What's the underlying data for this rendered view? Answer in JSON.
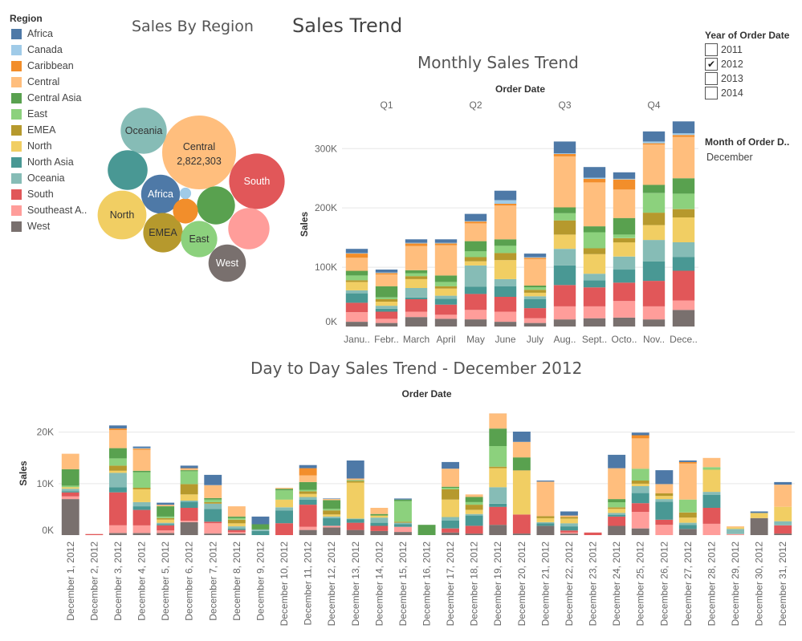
{
  "dashboard_title": "Sales Trend",
  "legend": {
    "title": "Region",
    "items": [
      {
        "name": "Africa",
        "color": "#4e79a7"
      },
      {
        "name": "Canada",
        "color": "#a0cbe8"
      },
      {
        "name": "Caribbean",
        "color": "#f28e2b"
      },
      {
        "name": "Central",
        "color": "#ffbe7d"
      },
      {
        "name": "Central Asia",
        "color": "#59a14f"
      },
      {
        "name": "East",
        "color": "#8cd17d"
      },
      {
        "name": "EMEA",
        "color": "#b6992d"
      },
      {
        "name": "North",
        "color": "#f1ce63"
      },
      {
        "name": "North Asia",
        "color": "#499894"
      },
      {
        "name": "Oceania",
        "color": "#86bcb6"
      },
      {
        "name": "South",
        "color": "#e15759"
      },
      {
        "name": "Southeast A..",
        "color": "#ff9d9a"
      },
      {
        "name": "West",
        "color": "#79706e"
      }
    ]
  },
  "filters": {
    "year": {
      "title": "Year of Order Date",
      "options": [
        {
          "label": "2011",
          "checked": false
        },
        {
          "label": "2012",
          "checked": true
        },
        {
          "label": "2013",
          "checked": false
        },
        {
          "label": "2014",
          "checked": false
        }
      ],
      "check_mark": "✔"
    },
    "month": {
      "title": "Month of Order D..",
      "value": "December"
    }
  },
  "chart_data": [
    {
      "type": "bubble",
      "title": "Sales By Region",
      "labels": [
        {
          "region": "Central",
          "text": "Central",
          "value_text": "2,822,303"
        },
        {
          "region": "Oceania",
          "text": "Oceania"
        },
        {
          "region": "South",
          "text": "South"
        },
        {
          "region": "Africa",
          "text": "Africa"
        },
        {
          "region": "North",
          "text": "North"
        },
        {
          "region": "EMEA",
          "text": "EMEA"
        },
        {
          "region": "East",
          "text": "East"
        },
        {
          "region": "West",
          "text": "West"
        }
      ],
      "values": {
        "Central": 2822303,
        "South": 1600000,
        "Oceania": 1100000,
        "North Asia": 820000,
        "North": 1230000,
        "Africa": 783000,
        "EMEA": 806000,
        "Central Asia": 752000,
        "Southeast A..": 884000,
        "West": 725000,
        "East": 679000,
        "Caribbean": 324000,
        "Canada": 66900
      }
    },
    {
      "type": "bar",
      "stacked": true,
      "title": "Monthly Sales Trend",
      "xlabel": "Order Date",
      "ylabel": "Sales",
      "quarters": [
        "Q1",
        "Q2",
        "Q3",
        "Q4"
      ],
      "categories": [
        "Janu..",
        "Febr..",
        "March",
        "April",
        "May",
        "June",
        "July",
        "Aug..",
        "Sept..",
        "Octo..",
        "Nov..",
        "Dece.."
      ],
      "ylim": [
        0,
        345000
      ],
      "yticks": [
        0,
        100000,
        200000,
        300000
      ],
      "ytick_labels": [
        "0K",
        "100K",
        "200K",
        "300K"
      ],
      "series": [
        {
          "name": "West",
          "values": [
            8000,
            6000,
            16000,
            13000,
            12000,
            8000,
            6000,
            12000,
            14000,
            15000,
            12000,
            28000
          ]
        },
        {
          "name": "Southeast A..",
          "values": [
            16000,
            7000,
            9000,
            7000,
            16000,
            17000,
            8000,
            22000,
            20000,
            28000,
            22000,
            16000
          ]
        },
        {
          "name": "South",
          "values": [
            16000,
            12000,
            21000,
            17000,
            27000,
            25000,
            17000,
            36000,
            32000,
            31000,
            43000,
            50000
          ]
        },
        {
          "name": "North Asia",
          "values": [
            16000,
            5000,
            3000,
            10000,
            12000,
            18000,
            15000,
            33000,
            12000,
            22000,
            33000,
            23000
          ]
        },
        {
          "name": "Oceania",
          "values": [
            5000,
            5000,
            16000,
            5000,
            36000,
            12000,
            5000,
            28000,
            11000,
            22000,
            36000,
            25000
          ]
        },
        {
          "name": "North",
          "values": [
            14000,
            7000,
            15000,
            12000,
            7000,
            32000,
            6000,
            24000,
            33000,
            24000,
            25000,
            42000
          ]
        },
        {
          "name": "EMEA",
          "values": [
            3000,
            4000,
            5000,
            4000,
            7000,
            12000,
            5000,
            24000,
            10000,
            7000,
            21000,
            14000
          ]
        },
        {
          "name": "East",
          "values": [
            8000,
            3000,
            5000,
            7000,
            10000,
            12000,
            4000,
            12000,
            27000,
            6000,
            33000,
            26000
          ]
        },
        {
          "name": "Central Asia",
          "values": [
            8000,
            19000,
            5000,
            11000,
            17000,
            11000,
            3000,
            10000,
            10000,
            28000,
            14000,
            26000
          ]
        },
        {
          "name": "Central",
          "values": [
            22000,
            20000,
            41000,
            51000,
            30000,
            57000,
            45000,
            86000,
            74000,
            48000,
            68000,
            70000
          ]
        },
        {
          "name": "Caribbean",
          "values": [
            7000,
            2000,
            4000,
            3000,
            3000,
            3000,
            2000,
            4000,
            6000,
            17000,
            2000,
            3000
          ]
        },
        {
          "name": "Canada",
          "values": [
            1000,
            1000,
            1000,
            1000,
            1000,
            6000,
            1000,
            1000,
            2000,
            1000,
            3000,
            3000
          ]
        },
        {
          "name": "Africa",
          "values": [
            7000,
            5000,
            6000,
            6000,
            12000,
            16000,
            6000,
            20000,
            18000,
            11000,
            17000,
            20000
          ]
        }
      ]
    },
    {
      "type": "bar",
      "stacked": true,
      "title": "Day to Day Sales Trend - December 2012",
      "xlabel": "Order Date",
      "ylabel": "Sales",
      "categories": [
        "December 1, 2012",
        "December 2, 2012",
        "December 3, 2012",
        "December 4, 2012",
        "December 5, 2012",
        "December 6, 2012",
        "December 7, 2012",
        "December 8, 2012",
        "December 9, 2012",
        "December 10, 2012",
        "December 11, 2012",
        "December 12, 2012",
        "December 13, 2012",
        "December 14, 2012",
        "December 15, 2012",
        "December 16, 2012",
        "December 17, 2012",
        "December 18, 2012",
        "December 19, 2012",
        "December 20, 2012",
        "December 21, 2012",
        "December 22, 2012",
        "December 23, 2012",
        "December 24, 2012",
        "December 25, 2012",
        "December 26, 2012",
        "December 27, 2012",
        "December 28, 2012",
        "December 29, 2012",
        "December 30, 2012",
        "December 31, 2012"
      ],
      "ylim": [
        0,
        24000
      ],
      "yticks": [
        0,
        10000,
        20000
      ],
      "ytick_labels": [
        "0K",
        "10K",
        "20K"
      ],
      "series": [
        {
          "name": "West",
          "values": [
            7000,
            0,
            400,
            400,
            400,
            2500,
            300,
            300,
            0,
            0,
            1000,
            1500,
            1000,
            800,
            600,
            0,
            500,
            300,
            2000,
            300,
            1800,
            300,
            0,
            1800,
            1300,
            0,
            1200,
            0,
            0,
            3300,
            300
          ]
        },
        {
          "name": "Southeast A..",
          "values": [
            500,
            0,
            1500,
            1500,
            500,
            300,
            2000,
            300,
            0,
            0,
            600,
            300,
            0,
            0,
            1000,
            0,
            0,
            0,
            0,
            0,
            0,
            200,
            0,
            0,
            3200,
            2000,
            0,
            2200,
            200,
            0,
            0
          ]
        },
        {
          "name": "South",
          "values": [
            800,
            200,
            6400,
            3000,
            1000,
            2500,
            300,
            400,
            0,
            2300,
            4300,
            0,
            1400,
            1000,
            0,
            0,
            800,
            1500,
            3500,
            3700,
            0,
            400,
            500,
            1800,
            1700,
            1000,
            0,
            3100,
            0,
            0,
            1600
          ]
        },
        {
          "name": "North Asia",
          "values": [
            200,
            0,
            1000,
            700,
            200,
            1200,
            2500,
            300,
            800,
            2500,
            1000,
            1500,
            700,
            600,
            500,
            0,
            1500,
            2000,
            600,
            0,
            500,
            800,
            0,
            300,
            2000,
            3500,
            800,
            2500,
            0,
            0,
            0
          ]
        },
        {
          "name": "Oceania",
          "values": [
            500,
            0,
            2800,
            800,
            300,
            200,
            1000,
            400,
            300,
            600,
            500,
            300,
            100,
            1000,
            300,
            0,
            700,
            300,
            3200,
            0,
            200,
            600,
            0,
            400,
            1300,
            500,
            400,
            600,
            1000,
            0,
            800
          ]
        },
        {
          "name": "North",
          "values": [
            300,
            0,
            400,
            2500,
            600,
            1200,
            0,
            600,
            0,
            1500,
            600,
            400,
            7000,
            400,
            0,
            0,
            3400,
            800,
            3700,
            8500,
            800,
            900,
            0,
            800,
            500,
            600,
            1000,
            4300,
            300,
            1000,
            2800
          ]
        },
        {
          "name": "EMEA",
          "values": [
            0,
            0,
            1000,
            300,
            300,
            2000,
            300,
            700,
            0,
            0,
            500,
            800,
            300,
            0,
            200,
            0,
            2000,
            1000,
            300,
            100,
            400,
            300,
            0,
            300,
            600,
            500,
            1000,
            0,
            0,
            0,
            0
          ]
        },
        {
          "name": "East",
          "values": [
            300,
            0,
            1400,
            3000,
            300,
            2500,
            500,
            300,
            0,
            1800,
            300,
            300,
            100,
            0,
            4000,
            0,
            300,
            500,
            4000,
            0,
            0,
            0,
            0,
            1000,
            2300,
            0,
            2500,
            500,
            0,
            0,
            0
          ]
        },
        {
          "name": "Central Asia",
          "values": [
            3200,
            0,
            2000,
            300,
            2000,
            200,
            300,
            300,
            1000,
            300,
            1500,
            1700,
            100,
            300,
            300,
            2000,
            200,
            1000,
            3400,
            2500,
            0,
            0,
            0,
            600,
            0,
            0,
            0,
            0,
            0,
            0,
            0
          ]
        },
        {
          "name": "Central",
          "values": [
            3000,
            0,
            3500,
            4100,
            300,
            300,
            2500,
            2000,
            0,
            200,
            1300,
            200,
            300,
            1200,
            0,
            0,
            3500,
            500,
            2800,
            3000,
            6700,
            300,
            0,
            6000,
            5900,
            1800,
            7000,
            1800,
            200,
            0,
            4300
          ]
        },
        {
          "name": "Caribbean",
          "values": [
            0,
            0,
            300,
            200,
            0,
            100,
            0,
            0,
            0,
            0,
            1400,
            0,
            0,
            0,
            0,
            0,
            0,
            0,
            100,
            0,
            0,
            0,
            0,
            0,
            600,
            0,
            300,
            0,
            0,
            0,
            0
          ]
        },
        {
          "name": "Canada",
          "values": [
            0,
            0,
            0,
            100,
            0,
            0,
            0,
            0,
            0,
            0,
            0,
            0,
            0,
            0,
            0,
            0,
            0,
            0,
            0,
            0,
            0,
            0,
            0,
            0,
            0,
            0,
            0,
            0,
            0,
            0,
            0
          ]
        },
        {
          "name": "Africa",
          "values": [
            0,
            0,
            600,
            300,
            400,
            500,
            2000,
            0,
            1500,
            0,
            600,
            100,
            3500,
            0,
            200,
            0,
            1300,
            0,
            0,
            2000,
            200,
            800,
            0,
            2600,
            500,
            2700,
            300,
            0,
            0,
            300,
            500
          ]
        }
      ]
    }
  ]
}
